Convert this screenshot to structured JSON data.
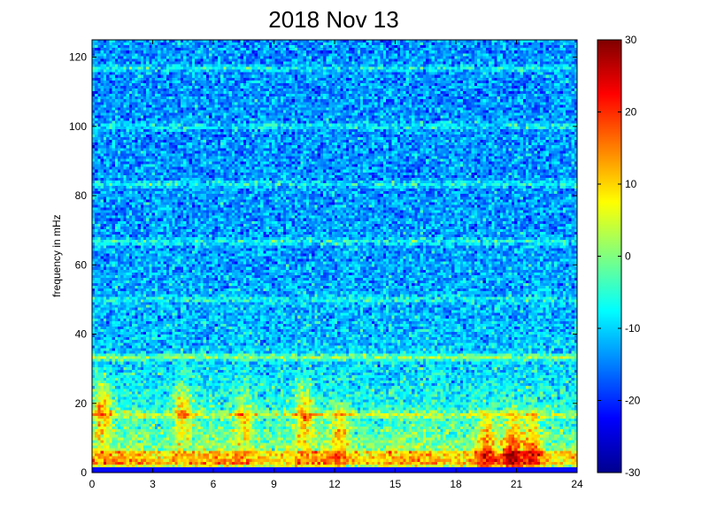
{
  "chart_data": {
    "type": "heatmap",
    "title": "2018 Nov 13",
    "xlabel": "",
    "ylabel": "frequency in mHz",
    "xlim": [
      0,
      24
    ],
    "ylim": [
      0,
      125
    ],
    "x_ticks": [
      "0",
      "3",
      "6",
      "9",
      "12",
      "15",
      "18",
      "21",
      "24"
    ],
    "y_ticks": [
      "0",
      "20",
      "40",
      "60",
      "80",
      "100",
      "120"
    ],
    "colorbar": {
      "colormap": "jet",
      "range": [
        -30,
        30
      ],
      "ticks": [
        "30",
        "20",
        "10",
        "0",
        "-10",
        "-20",
        "-30"
      ]
    },
    "features": {
      "background_level_low_freq": 4,
      "background_level_high_freq": -14,
      "horizontal_lines_mHz": [
        33.3,
        16.7,
        83.3,
        66.7,
        116.7,
        100,
        50
      ],
      "bursts": [
        {
          "hour": 0.5,
          "freq_mHz": 18,
          "level": 22
        },
        {
          "hour": 4.5,
          "freq_mHz": 18,
          "level": 20
        },
        {
          "hour": 7.5,
          "freq_mHz": 15,
          "level": 16
        },
        {
          "hour": 10.5,
          "freq_mHz": 17,
          "level": 20
        },
        {
          "hour": 12.3,
          "freq_mHz": 12,
          "level": 17
        },
        {
          "hour": 19.5,
          "freq_mHz": 8,
          "level": 20
        },
        {
          "hour": 20.8,
          "freq_mHz": 8,
          "level": 22
        },
        {
          "hour": 21.8,
          "freq_mHz": 8,
          "level": 20
        }
      ]
    }
  }
}
